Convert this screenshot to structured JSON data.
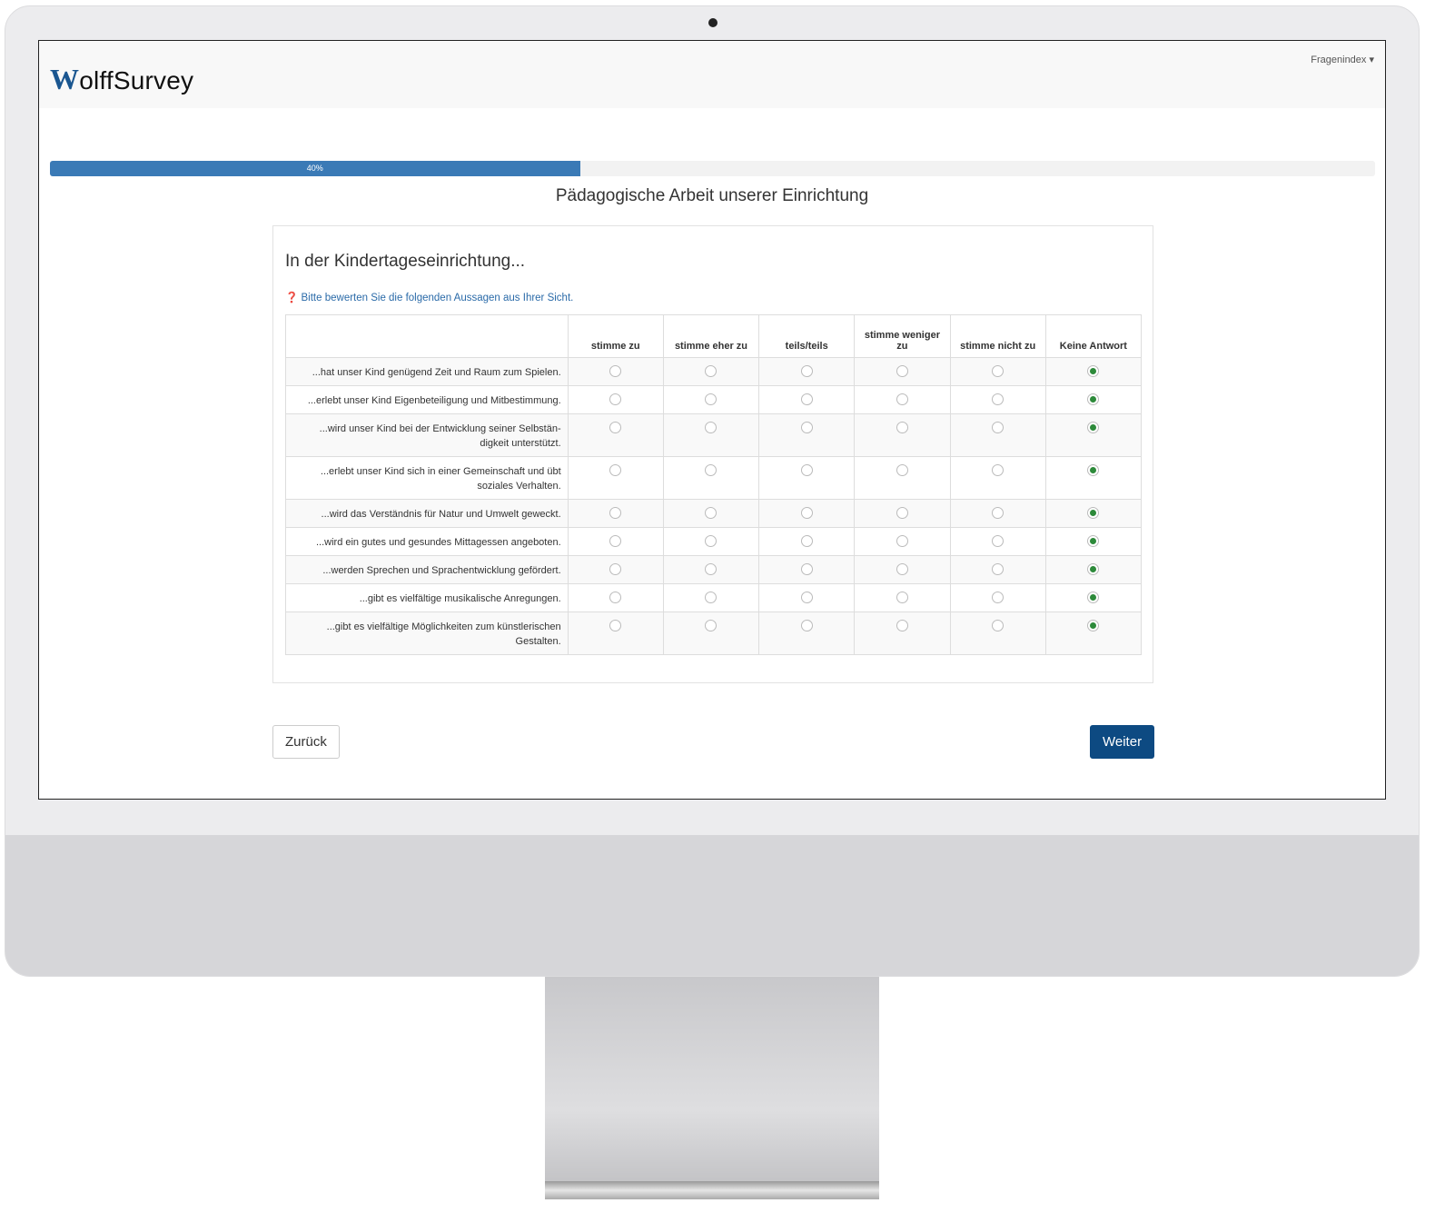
{
  "brand": {
    "logo_initial": "W",
    "logo_rest": "olffSurvey",
    "accent": "#1a5690"
  },
  "nav": {
    "question_index": "Fragenindex ▾"
  },
  "progress": {
    "value": 40,
    "label": "40%"
  },
  "page_title": "Pädagogische Arbeit unserer Einrichtung",
  "question": {
    "title": "In der Kindertageseinrichtung...",
    "hint": "❓ Bitte bewerten Sie die folgenden Aussagen aus Ihrer Sicht.",
    "columns": [
      "stimme zu",
      "stimme eher zu",
      "teils/teils",
      "stimme weniger zu",
      "stimme nicht zu",
      "Keine Antwort"
    ],
    "rows": [
      {
        "label": "...hat unser Kind genügend Zeit und Raum zum Spielen.",
        "selected": 5
      },
      {
        "label": "...erlebt unser Kind Eigenbeteiligung und Mitbestim­mung.",
        "selected": 5
      },
      {
        "label": "...wird unser Kind bei der Entwicklung seiner Selbstän­digkeit unterstützt.",
        "selected": 5
      },
      {
        "label": "...erlebt unser Kind sich in einer Gemeinschaft und übt soziales Verhalten.",
        "selected": 5
      },
      {
        "label": "...wird das Verständnis für Natur und Umwelt geweckt.",
        "selected": 5
      },
      {
        "label": "...wird ein gutes und gesundes Mittagessen angeboten.",
        "selected": 5
      },
      {
        "label": "...werden Sprechen und Sprachentwicklung gefördert.",
        "selected": 5
      },
      {
        "label": "...gibt es vielfältige musikalische Anregungen.",
        "selected": 5
      },
      {
        "label": "...gibt es vielfältige Möglichkeiten zum künstlerischen Gestalten.",
        "selected": 5
      }
    ]
  },
  "buttons": {
    "back": "Zurück",
    "next": "Weiter"
  }
}
